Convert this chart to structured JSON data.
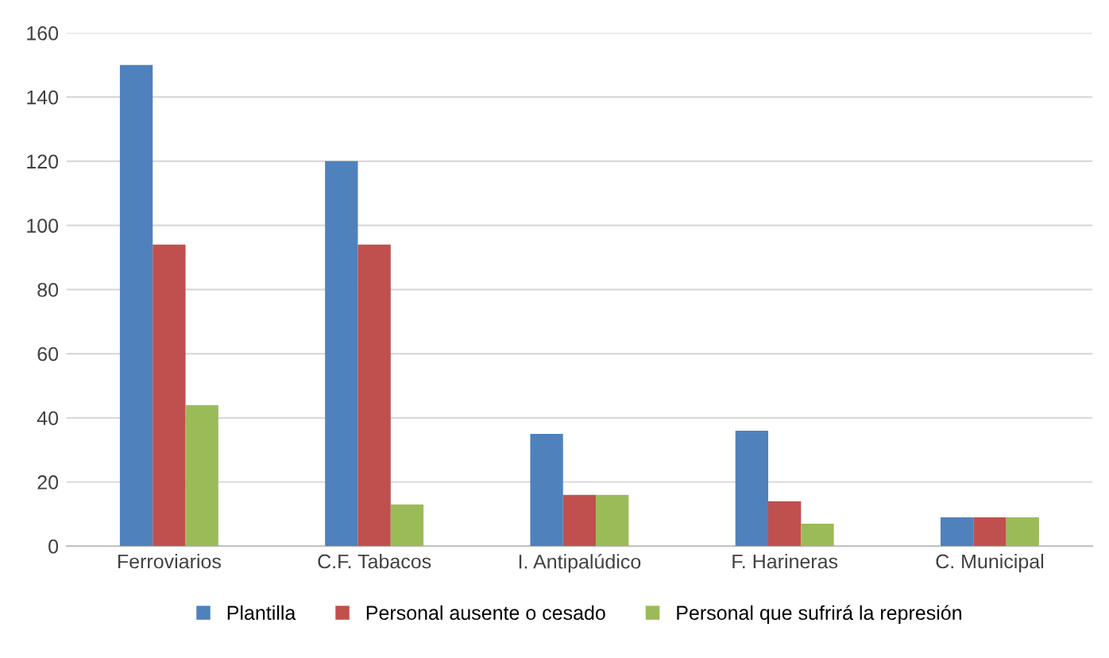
{
  "chart_data": {
    "type": "bar",
    "categories": [
      "Ferroviarios",
      "C.F. Tabacos",
      "I. Antipalúdico",
      "F. Harineras",
      "C. Municipal"
    ],
    "series": [
      {
        "name": "Plantilla",
        "color": "#4f81bd",
        "values": [
          150,
          120,
          35,
          36,
          9
        ]
      },
      {
        "name": "Personal ausente o cesado",
        "color": "#c0504d",
        "values": [
          94,
          94,
          16,
          14,
          9
        ]
      },
      {
        "name": "Personal que sufrirá la represión",
        "color": "#9bbb59",
        "values": [
          44,
          13,
          16,
          7,
          9
        ]
      }
    ],
    "ylim": [
      0,
      160
    ],
    "yticks": [
      0,
      20,
      40,
      60,
      80,
      100,
      120,
      140,
      160
    ],
    "grid": "y",
    "legend": "bottom"
  }
}
